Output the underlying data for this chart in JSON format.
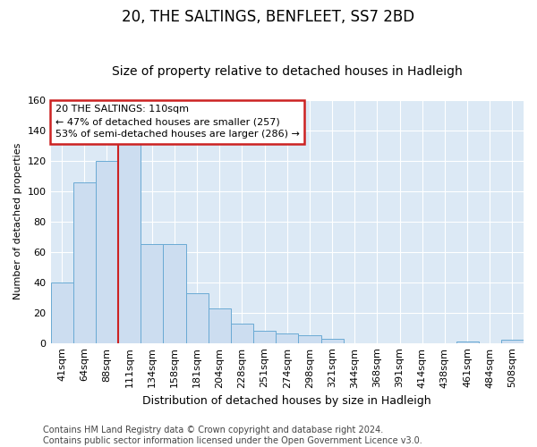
{
  "title": "20, THE SALTINGS, BENFLEET, SS7 2BD",
  "subtitle": "Size of property relative to detached houses in Hadleigh",
  "xlabel": "Distribution of detached houses by size in Hadleigh",
  "ylabel": "Number of detached properties",
  "categories": [
    "41sqm",
    "64sqm",
    "88sqm",
    "111sqm",
    "134sqm",
    "158sqm",
    "181sqm",
    "204sqm",
    "228sqm",
    "251sqm",
    "274sqm",
    "298sqm",
    "321sqm",
    "344sqm",
    "368sqm",
    "391sqm",
    "414sqm",
    "438sqm",
    "461sqm",
    "484sqm",
    "508sqm"
  ],
  "values": [
    40,
    106,
    120,
    131,
    65,
    65,
    33,
    23,
    13,
    8,
    6,
    5,
    3,
    0,
    0,
    0,
    0,
    0,
    1,
    0,
    2
  ],
  "bar_color": "#ccddf0",
  "bar_edge_color": "#6aaad4",
  "vline_x_index": 3,
  "vline_color": "#cc2222",
  "annotation_line1": "20 THE SALTINGS: 110sqm",
  "annotation_line2": "← 47% of detached houses are smaller (257)",
  "annotation_line3": "53% of semi-detached houses are larger (286) →",
  "annotation_box_color": "#cc2222",
  "ylim": [
    0,
    160
  ],
  "yticks": [
    0,
    20,
    40,
    60,
    80,
    100,
    120,
    140,
    160
  ],
  "footer_line1": "Contains HM Land Registry data © Crown copyright and database right 2024.",
  "footer_line2": "Contains public sector information licensed under the Open Government Licence v3.0.",
  "bg_color": "#ffffff",
  "plot_bg_color": "#dce9f5",
  "grid_color": "#ffffff",
  "title_fontsize": 12,
  "subtitle_fontsize": 10,
  "xlabel_fontsize": 9,
  "ylabel_fontsize": 8,
  "tick_fontsize": 8,
  "annot_fontsize": 8,
  "footer_fontsize": 7
}
